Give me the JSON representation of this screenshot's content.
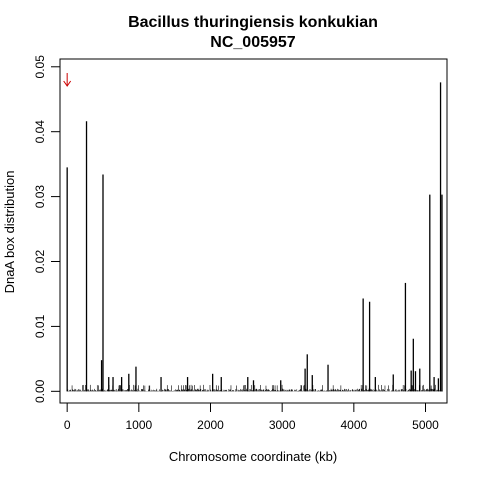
{
  "chart_data": {
    "type": "bar",
    "title": "Bacillus thuringiensis konkukian",
    "subtitle": "NC_005957",
    "xlabel": "Chromosome coordinate (kb)",
    "ylabel": "DnaA box distribution",
    "xlim": [
      -100,
      5300
    ],
    "ylim": [
      -0.0018,
      0.0512
    ],
    "x_ticks": [
      0,
      1000,
      2000,
      3000,
      4000,
      5000
    ],
    "x_tick_labels": [
      "0",
      "1000",
      "2000",
      "3000",
      "4000",
      "5000"
    ],
    "y_ticks": [
      0.0,
      0.01,
      0.02,
      0.03,
      0.04,
      0.05
    ],
    "y_tick_labels": [
      "0.00",
      "0.01",
      "0.02",
      "0.03",
      "0.04",
      "0.05"
    ],
    "grid": false,
    "legend": "none",
    "bar_color": "#000000",
    "annotation_color": "#cc0000",
    "origin_arrow_x": 0,
    "x": [
      0,
      270,
      480,
      500,
      580,
      640,
      760,
      860,
      960,
      1310,
      1680,
      2030,
      2150,
      2520,
      2600,
      2980,
      3320,
      3350,
      3420,
      3640,
      4130,
      4220,
      4300,
      4550,
      4720,
      4800,
      4830,
      4860,
      4920,
      5060,
      5120,
      5180,
      5210,
      5230
    ],
    "values": [
      0.0345,
      0.0416,
      0.0048,
      0.0334,
      0.0022,
      0.0022,
      0.0022,
      0.0027,
      0.0038,
      0.0022,
      0.0022,
      0.0027,
      0.0022,
      0.0022,
      0.0017,
      0.0017,
      0.0035,
      0.0057,
      0.0025,
      0.0041,
      0.0143,
      0.0138,
      0.0022,
      0.0026,
      0.0167,
      0.0032,
      0.0081,
      0.0031,
      0.0035,
      0.0303,
      0.0022,
      0.002,
      0.0476,
      0.0303
    ]
  }
}
